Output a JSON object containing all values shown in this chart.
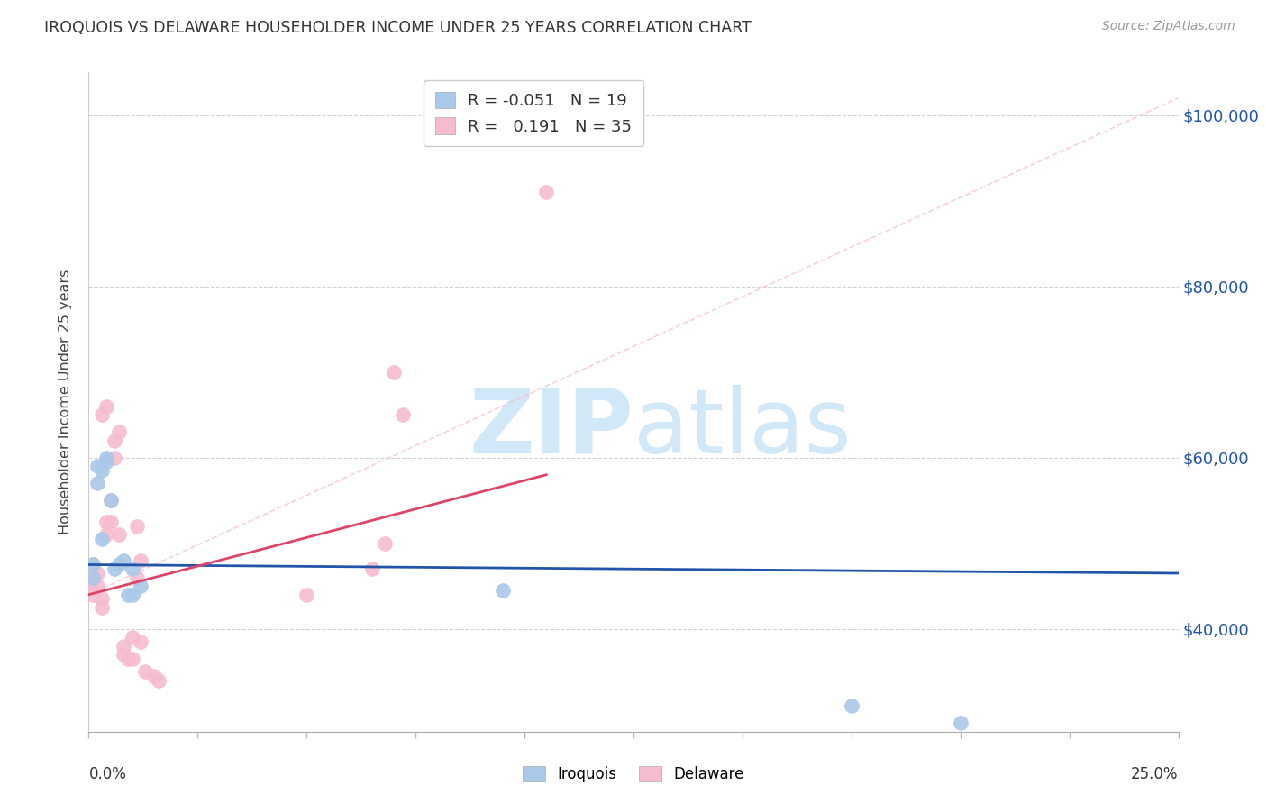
{
  "title": "IROQUOIS VS DELAWARE HOUSEHOLDER INCOME UNDER 25 YEARS CORRELATION CHART",
  "source": "Source: ZipAtlas.com",
  "ylabel": "Householder Income Under 25 years",
  "xlim": [
    0.0,
    0.25
  ],
  "ylim": [
    28000,
    105000
  ],
  "yticks": [
    40000,
    60000,
    80000,
    100000
  ],
  "ytick_labels": [
    "$40,000",
    "$60,000",
    "$80,000",
    "$100,000"
  ],
  "legend_iroquois": "Iroquois",
  "legend_delaware": "Delaware",
  "R_iroquois": "-0.051",
  "N_iroquois": "19",
  "R_delaware": "0.191",
  "N_delaware": "35",
  "color_iroquois": "#aac8e8",
  "color_delaware": "#f5bcd0",
  "line_color_iroquois": "#2255aa",
  "line_color_delaware": "#dd4466",
  "diag_color": "#f5bcd0",
  "watermark_color": "#d0e8f8",
  "iroquois_x": [
    0.001,
    0.001,
    0.002,
    0.002,
    0.003,
    0.003,
    0.004,
    0.004,
    0.005,
    0.006,
    0.007,
    0.008,
    0.009,
    0.01,
    0.01,
    0.012,
    0.095,
    0.175,
    0.2
  ],
  "iroquois_y": [
    47500,
    46000,
    57000,
    59000,
    50500,
    58500,
    60000,
    59500,
    55000,
    47000,
    47500,
    48000,
    44000,
    47000,
    44000,
    45000,
    44500,
    31000,
    29000
  ],
  "delaware_x": [
    0.001,
    0.001,
    0.001,
    0.002,
    0.002,
    0.003,
    0.003,
    0.003,
    0.004,
    0.004,
    0.004,
    0.005,
    0.005,
    0.006,
    0.006,
    0.007,
    0.007,
    0.008,
    0.008,
    0.009,
    0.01,
    0.01,
    0.011,
    0.011,
    0.012,
    0.012,
    0.013,
    0.015,
    0.016,
    0.05,
    0.065,
    0.068,
    0.07,
    0.072,
    0.105
  ],
  "delaware_y": [
    47500,
    45500,
    44000,
    45000,
    46500,
    43500,
    42500,
    65000,
    51000,
    52500,
    66000,
    55000,
    52500,
    62000,
    60000,
    63000,
    51000,
    38000,
    37000,
    36500,
    39000,
    36500,
    46000,
    52000,
    38500,
    48000,
    35000,
    34500,
    34000,
    44000,
    47000,
    50000,
    70000,
    65000,
    91000
  ],
  "iroquois_line_x": [
    0.0,
    0.25
  ],
  "iroquois_line_y": [
    47500,
    46500
  ],
  "delaware_line_x": [
    0.0,
    0.105
  ],
  "delaware_line_y": [
    44000,
    58000
  ],
  "diag_line_x": [
    0.0,
    0.25
  ],
  "diag_line_y": [
    44000,
    102000
  ]
}
